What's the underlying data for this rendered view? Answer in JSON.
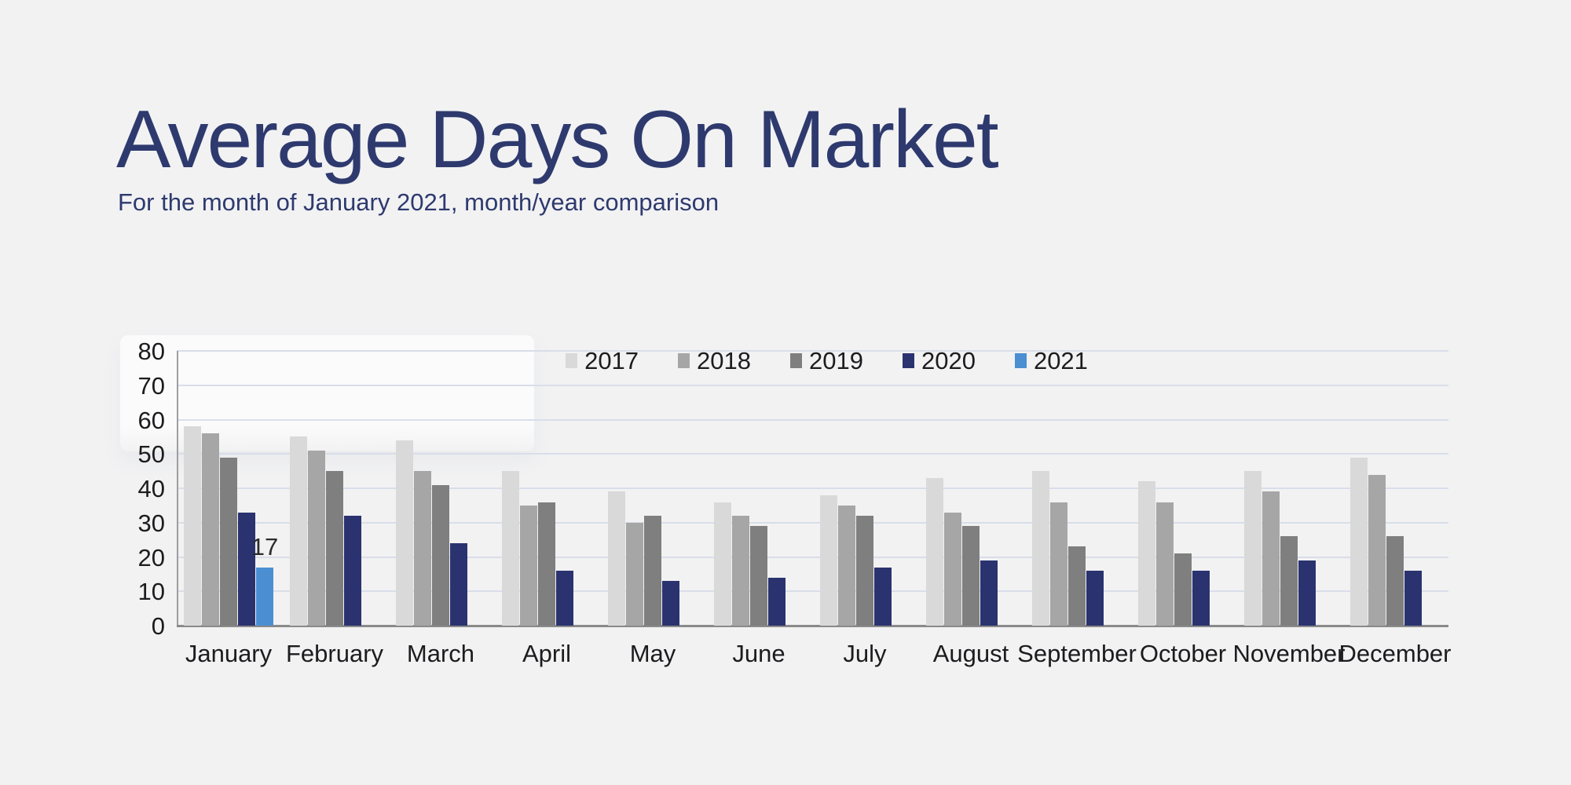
{
  "header": {
    "title": "Average Days On Market",
    "subtitle": "For the month of January 2021, month/year comparison"
  },
  "colors": {
    "bg": "#f2f2f3",
    "title-color": "#2e3a6e",
    "text-color": "#1c1c1e",
    "grid-color": "#d8dee9",
    "axis-color": "#9e9e9e",
    "baseline-color": "#8a8a8a",
    "panel-color": "#fbfbfc"
  },
  "chart_data": {
    "type": "bar",
    "title": "Average Days On Market",
    "subtitle": "For the month of January 2021, month/year comparison",
    "categories": [
      "January",
      "February",
      "March",
      "April",
      "May",
      "June",
      "July",
      "August",
      "September",
      "October",
      "November",
      "December"
    ],
    "series": [
      {
        "name": "2017",
        "color": "#d9d9d9",
        "values": [
          58,
          55,
          54,
          45,
          39,
          36,
          38,
          43,
          45,
          42,
          45,
          49
        ]
      },
      {
        "name": "2018",
        "color": "#a6a6a6",
        "values": [
          56,
          51,
          45,
          35,
          30,
          32,
          35,
          33,
          36,
          36,
          39,
          44
        ]
      },
      {
        "name": "2019",
        "color": "#7f7f7f",
        "values": [
          49,
          45,
          41,
          36,
          32,
          29,
          32,
          29,
          23,
          21,
          26,
          26
        ]
      },
      {
        "name": "2020",
        "color": "#2a336f",
        "values": [
          33,
          32,
          24,
          16,
          13,
          14,
          17,
          19,
          16,
          16,
          19,
          16
        ]
      },
      {
        "name": "2021",
        "color": "#4b8fd2",
        "values": [
          17,
          null,
          null,
          null,
          null,
          null,
          null,
          null,
          null,
          null,
          null,
          null
        ]
      }
    ],
    "ylim": [
      0,
      80
    ],
    "yticks": [
      0,
      10,
      20,
      30,
      40,
      50,
      60,
      70,
      80
    ],
    "grid": "horizontal",
    "legend_position": "top-center",
    "legend_entries": [
      "2017",
      "2018",
      "2019",
      "2020",
      "2021"
    ],
    "annotations": [
      {
        "category": "January",
        "series": "2021",
        "text": "17"
      }
    ]
  }
}
